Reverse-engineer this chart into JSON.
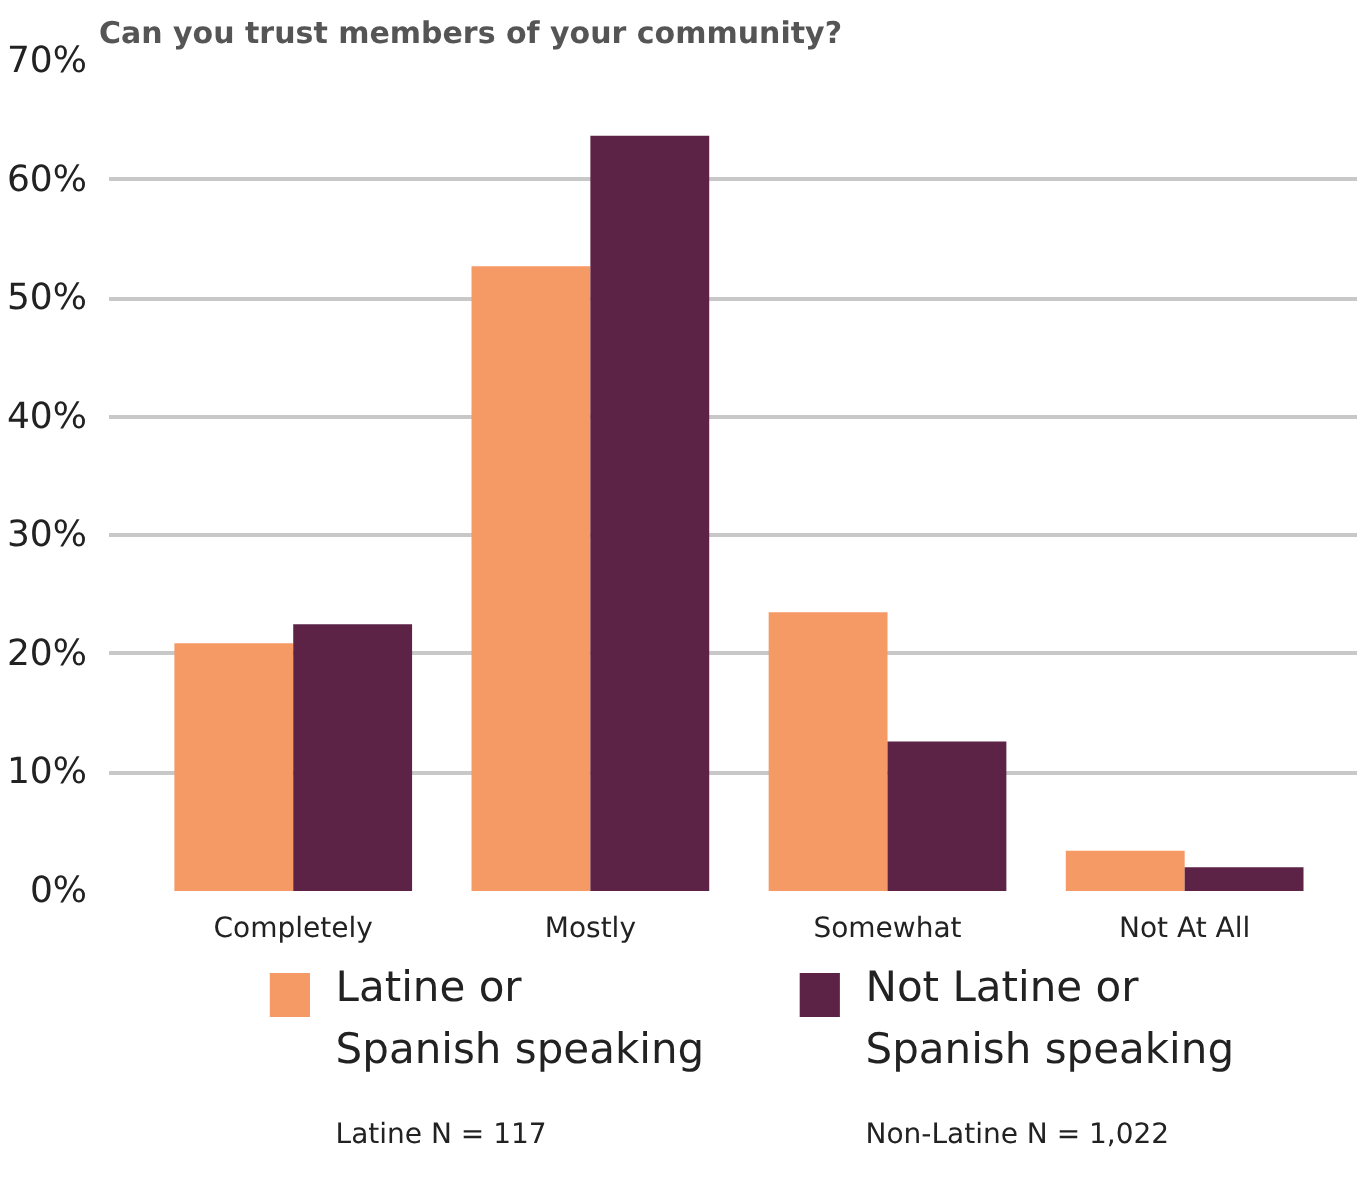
{
  "chart_data": {
    "type": "bar",
    "title": "Can you trust members of your community?",
    "categories": [
      "Completely",
      "Mostly",
      "Somewhat",
      "Not At All"
    ],
    "series": [
      {
        "name": "Latine or\nSpanish speaking",
        "color": "#f59965",
        "values": [
          20.9,
          52.7,
          23.5,
          3.4
        ]
      },
      {
        "name": "Not Latine or\nSpanish speaking",
        "color": "#5d2346",
        "values": [
          22.5,
          63.7,
          12.6,
          2.0
        ]
      }
    ],
    "ylim": [
      0,
      70
    ],
    "yticks": [
      {
        "value": 0,
        "label": "0%"
      },
      {
        "value": 10,
        "label": "10%"
      },
      {
        "value": 20,
        "label": "20%"
      },
      {
        "value": 30,
        "label": "30%"
      },
      {
        "value": 40,
        "label": "40%"
      },
      {
        "value": 50,
        "label": "50%"
      },
      {
        "value": 60,
        "label": "60%"
      },
      {
        "value": 70,
        "label": "70%"
      }
    ],
    "grid": "y",
    "legend": "bottom",
    "annotations": [
      "Latine N = 117",
      "Non-Latine N = 1,022"
    ]
  }
}
